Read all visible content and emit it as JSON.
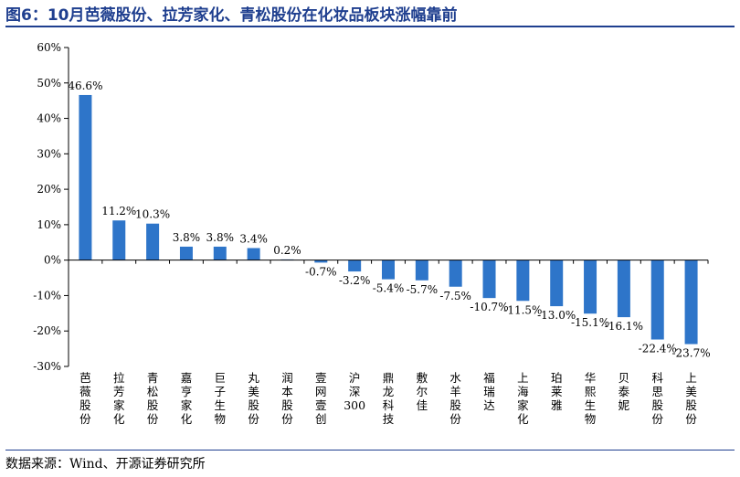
{
  "header": {
    "title": "图6：10月芭薇股份、拉芳家化、青松股份在化妆品板块涨幅靠前"
  },
  "footer": {
    "source": "数据来源：Wind、开源证券研究所"
  },
  "colors": {
    "bar": "#2e75c9",
    "title": "#1f3f8f",
    "axis": "#000000"
  },
  "chart_data": {
    "type": "bar",
    "title": "图6：10月芭薇股份、拉芳家化、青松股份在化妆品板块涨幅靠前",
    "xlabel": "",
    "ylabel": "",
    "ylim": [
      -30,
      60
    ],
    "yticks": [
      60,
      50,
      40,
      30,
      20,
      10,
      0,
      -10,
      -20,
      -30
    ],
    "ytick_labels": [
      "60%",
      "50%",
      "40%",
      "30%",
      "20%",
      "10%",
      "0%",
      "-10%",
      "-20%",
      "-30%"
    ],
    "grid": false,
    "legend": "none",
    "categories": [
      "芭薇股份",
      "拉芳家化",
      "青松股份",
      "嘉亨家化",
      "巨子生物",
      "丸美股份",
      "润本股份",
      "壹网壹创",
      "沪深300",
      "鼎龙科技",
      "敷尔佳",
      "水羊股份",
      "福瑞达",
      "上海家化",
      "珀莱雅",
      "华熙生物",
      "贝泰妮",
      "科思股份",
      "上美股份"
    ],
    "values": [
      46.6,
      11.2,
      10.3,
      3.8,
      3.8,
      3.4,
      0.2,
      -0.7,
      -3.2,
      -5.4,
      -5.7,
      -7.5,
      -10.7,
      -11.5,
      -13.0,
      -15.1,
      -16.1,
      -22.4,
      -23.7
    ],
    "data_labels": [
      "46.6%",
      "11.2%",
      "10.3%",
      "3.8%",
      "3.8%",
      "3.4%",
      "0.2%",
      "-0.7%",
      "-3.2%",
      "-5.4%",
      "-5.7%",
      "-7.5%",
      "-10.7%",
      "-11.5%",
      "-13.0%",
      "-15.1%",
      "-16.1%",
      "-22.4%",
      "-23.7%"
    ]
  }
}
